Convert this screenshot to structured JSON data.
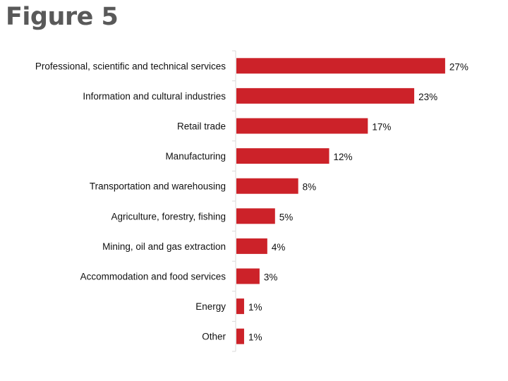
{
  "title": "Figure 5",
  "chart_data": {
    "type": "bar",
    "orientation": "horizontal",
    "title": "Figure 5",
    "categories": [
      "Professional, scientific and technical services",
      "Information and cultural industries",
      "Retail trade",
      "Manufacturing",
      "Transportation and warehousing",
      "Agriculture, forestry, fishing",
      "Mining, oil and gas extraction",
      "Accommodation and food services",
      "Energy",
      "Other"
    ],
    "values": [
      27,
      23,
      17,
      12,
      8,
      5,
      4,
      3,
      1,
      1
    ],
    "data_labels": [
      "27%",
      "23%",
      "17%",
      "12%",
      "8%",
      "5%",
      "4%",
      "3%",
      "1%",
      "1%"
    ],
    "unit": "%",
    "xlim": [
      0,
      30
    ],
    "grid": false,
    "legend": "none",
    "bar_color": "#CC2229"
  }
}
